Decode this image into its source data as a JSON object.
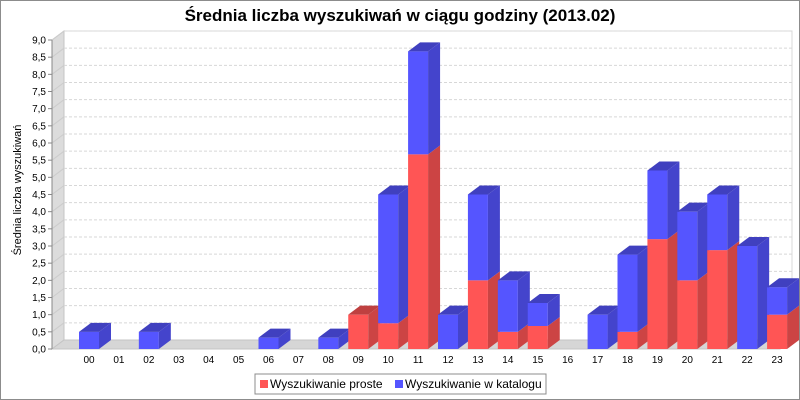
{
  "chart_data": {
    "type": "bar",
    "stacked": true,
    "style": "3d",
    "title": "Średnia liczba wyszukiwań w ciągu godziny (2013.02)",
    "xlabel": "",
    "ylabel": "Średnia liczba wyszukiwań",
    "ylim": [
      0,
      9
    ],
    "y_ticks": [
      "0,0",
      "0,5",
      "1,0",
      "1,5",
      "2,0",
      "2,5",
      "3,0",
      "3,5",
      "4,0",
      "4,5",
      "5,0",
      "5,5",
      "6,0",
      "6,5",
      "7,0",
      "7,5",
      "8,0",
      "8,5",
      "9,0"
    ],
    "grid": true,
    "legend_position": "bottom",
    "categories": [
      "00",
      "01",
      "02",
      "03",
      "04",
      "05",
      "06",
      "07",
      "08",
      "09",
      "10",
      "11",
      "12",
      "13",
      "14",
      "15",
      "16",
      "17",
      "18",
      "19",
      "20",
      "21",
      "22",
      "23"
    ],
    "series": [
      {
        "name": "Wyszukiwanie proste",
        "color": "#ff5555",
        "values": [
          0,
          0,
          0,
          0,
          0,
          0,
          0,
          0,
          0,
          1.0,
          0.75,
          5.67,
          0,
          2.0,
          0.5,
          0.67,
          0,
          0,
          0.5,
          3.2,
          2.0,
          2.88,
          0,
          1.0
        ]
      },
      {
        "name": "Wyszukiwanie w katalogu",
        "color": "#5555ff",
        "values": [
          0.5,
          0,
          0.5,
          0,
          0,
          0,
          0.33,
          0,
          0.33,
          0,
          3.75,
          3.0,
          1.0,
          2.5,
          1.5,
          0.67,
          0,
          1.0,
          2.25,
          2.0,
          2.0,
          1.62,
          3.0,
          0.8
        ]
      }
    ]
  }
}
